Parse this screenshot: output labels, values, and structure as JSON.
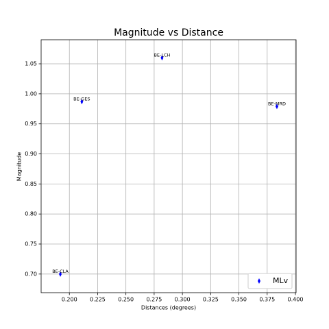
{
  "chart_data": {
    "type": "scatter",
    "title": "Magnitude vs Distance",
    "xlabel": "Distances (degrees)",
    "ylabel": "Magnitude",
    "series": [
      {
        "name": "MLv",
        "color": "#0000ff",
        "marker": "thin_diamond",
        "x": [
          0.192,
          0.211,
          0.282,
          0.3836
        ],
        "values": [
          0.7,
          0.987,
          1.06,
          0.979
        ],
        "labels": [
          "BE-CLA",
          "BE-GES",
          "BE-LCH",
          "BE-MRD"
        ]
      }
    ],
    "xlim": [
      0.175,
      0.4006
    ],
    "ylim": [
      0.669,
      1.09
    ],
    "xticks": [
      {
        "value": 0.2,
        "label": "0.200"
      },
      {
        "value": 0.225,
        "label": "0.225"
      },
      {
        "value": 0.25,
        "label": "0.250"
      },
      {
        "value": 0.275,
        "label": "0.275"
      },
      {
        "value": 0.3,
        "label": "0.300"
      },
      {
        "value": 0.325,
        "label": "0.325"
      },
      {
        "value": 0.35,
        "label": "0.350"
      },
      {
        "value": 0.375,
        "label": "0.375"
      },
      {
        "value": 0.4,
        "label": "0.400"
      }
    ],
    "yticks": [
      {
        "value": 0.7,
        "label": "0.70"
      },
      {
        "value": 0.75,
        "label": "0.75"
      },
      {
        "value": 0.8,
        "label": "0.80"
      },
      {
        "value": 0.85,
        "label": "0.85"
      },
      {
        "value": 0.9,
        "label": "0.90"
      },
      {
        "value": 0.95,
        "label": "0.95"
      },
      {
        "value": 1.0,
        "label": "1.00"
      },
      {
        "value": 1.05,
        "label": "1.05"
      }
    ],
    "grid": true,
    "legend": "lower right"
  }
}
